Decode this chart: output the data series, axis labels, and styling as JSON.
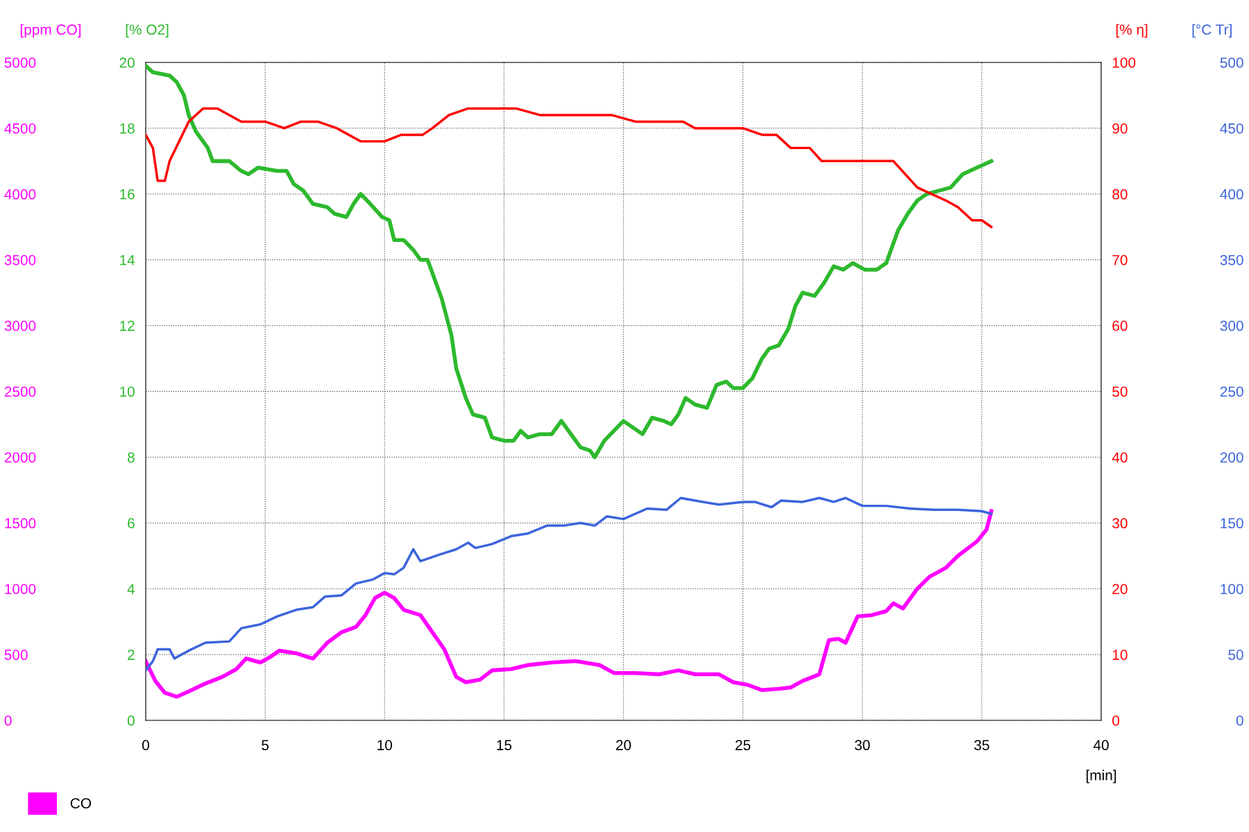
{
  "chart_data": [
    {
      "type": "line",
      "xlabel": "[min]",
      "ylabel": "[ppm CO]",
      "y2label": "[% O2]",
      "xlim": [
        0,
        40
      ],
      "xticks": [
        0,
        5,
        10,
        15,
        20,
        25,
        30,
        35,
        40
      ],
      "ylim": [
        0,
        5000
      ],
      "yticks": [
        0,
        500,
        1000,
        1500,
        2000,
        2500,
        3000,
        3500,
        4000,
        4500,
        5000
      ],
      "y2lim": [
        0,
        20
      ],
      "y2ticks": [
        0,
        2,
        4,
        6,
        8,
        10,
        12,
        14,
        16,
        18,
        20
      ],
      "grid": true,
      "legend": "bottom left",
      "series": [
        {
          "axis": "y2",
          "color": "#2db92d",
          "x": [
            0,
            0.3,
            1.0,
            1.3,
            1.6,
            1.8,
            2.1,
            2.6,
            2.8,
            3.5,
            4.0,
            4.3,
            4.7,
            5.5,
            5.9,
            6.2,
            6.6,
            7.0,
            7.6,
            7.9,
            8.4,
            8.7,
            9.0,
            9.4,
            9.9,
            10.2,
            10.4,
            10.8,
            11.2,
            11.5,
            11.8,
            12.1,
            12.4,
            12.8,
            13.0,
            13.4,
            13.7,
            14.2,
            14.5,
            15.0,
            15.4,
            15.7,
            16.0,
            16.5,
            17.0,
            17.4,
            17.8,
            18.2,
            18.6,
            18.8,
            19.2,
            19.6,
            20.0,
            20.4,
            20.8,
            21.2,
            21.7,
            22.0,
            22.3,
            22.6,
            23.0,
            23.5,
            23.9,
            24.3,
            24.6,
            25.0,
            25.4,
            25.8,
            26.1,
            26.5,
            26.9,
            27.2,
            27.5,
            28.0,
            28.4,
            28.8,
            29.2,
            29.6,
            30.1,
            30.6,
            31.0,
            31.5,
            31.9,
            32.3,
            32.7,
            33.2,
            33.7,
            34.2,
            34.8,
            35.4
          ],
          "values": [
            19.9,
            19.7,
            19.6,
            19.4,
            19.0,
            18.4,
            17.9,
            17.4,
            17.0,
            17.0,
            16.7,
            16.6,
            16.8,
            16.7,
            16.7,
            16.3,
            16.1,
            15.7,
            15.6,
            15.4,
            15.3,
            15.7,
            16.0,
            15.7,
            15.3,
            15.2,
            14.6,
            14.6,
            14.3,
            14.0,
            14.0,
            13.4,
            12.8,
            11.7,
            10.7,
            9.8,
            9.3,
            9.2,
            8.6,
            8.5,
            8.5,
            8.8,
            8.6,
            8.7,
            8.7,
            9.1,
            8.7,
            8.3,
            8.2,
            8.0,
            8.5,
            8.8,
            9.1,
            8.9,
            8.7,
            9.2,
            9.1,
            9.0,
            9.3,
            9.8,
            9.6,
            9.5,
            10.2,
            10.3,
            10.1,
            10.1,
            10.4,
            11.0,
            11.3,
            11.4,
            11.9,
            12.6,
            13.0,
            12.9,
            13.3,
            13.8,
            13.7,
            13.9,
            13.7,
            13.7,
            13.9,
            14.9,
            15.4,
            15.8,
            16.0,
            16.1,
            16.2,
            16.6,
            16.8,
            17.0
          ]
        },
        {
          "name": "CO",
          "color": "#ff00ff",
          "x": [
            0,
            0.4,
            0.8,
            1.3,
            1.8,
            2.5,
            3.2,
            3.8,
            4.2,
            4.8,
            5.2,
            5.6,
            6.3,
            6.8,
            7.0,
            7.6,
            8.2,
            8.8,
            9.2,
            9.6,
            10.0,
            10.4,
            10.8,
            11.5,
            12.0,
            12.5,
            13.0,
            13.4,
            14.0,
            14.5,
            15.3,
            16.0,
            17.0,
            18.0,
            19.0,
            19.6,
            20.5,
            21.5,
            22.3,
            23.0,
            24.0,
            24.6,
            25.2,
            25.8,
            26.5,
            27.0,
            27.5,
            28.2,
            28.6,
            29.0,
            29.3,
            29.8,
            30.4,
            31.0,
            31.3,
            31.7,
            32.3,
            32.8,
            33.5,
            34.0,
            34.8,
            35.2,
            35.4
          ],
          "values": [
            450,
            300,
            210,
            180,
            220,
            280,
            330,
            390,
            470,
            440,
            480,
            530,
            510,
            480,
            470,
            590,
            670,
            710,
            800,
            930,
            970,
            930,
            840,
            800,
            670,
            540,
            330,
            290,
            310,
            380,
            390,
            420,
            440,
            450,
            420,
            360,
            360,
            350,
            380,
            350,
            350,
            290,
            270,
            230,
            240,
            250,
            300,
            350,
            610,
            620,
            590,
            790,
            800,
            830,
            890,
            850,
            1000,
            1090,
            1160,
            1250,
            1360,
            1450,
            1590
          ]
        }
      ]
    },
    {
      "type": "line",
      "ylabel": "[% η]",
      "y2label": "[°C Tr]",
      "xlim": [
        0,
        40
      ],
      "tick_labels": "y",
      "ylim": [
        0,
        100
      ],
      "yticks": [
        0,
        10,
        20,
        30,
        40,
        50,
        60,
        70,
        80,
        90,
        100
      ],
      "y2lim": [
        0,
        500
      ],
      "y2ticks": [
        0,
        50,
        100,
        150,
        200,
        250,
        300,
        350,
        400,
        450,
        500
      ],
      "series": [
        {
          "color": "#ff0000",
          "x": [
            0,
            0.3,
            0.5,
            0.8,
            1.0,
            1.4,
            1.8,
            2.4,
            3.0,
            3.5,
            4.0,
            5.0,
            5.8,
            6.5,
            7.2,
            8.0,
            8.5,
            9.0,
            9.5,
            10.0,
            10.7,
            11.2,
            11.6,
            12.0,
            12.7,
            13.5,
            14.5,
            15.5,
            16.5,
            17.5,
            18.5,
            19.5,
            20.5,
            21.5,
            22.5,
            23.0,
            24.0,
            25.0,
            25.8,
            26.4,
            27.0,
            27.8,
            28.3,
            29.0,
            29.7,
            30.2,
            30.8,
            31.3,
            31.8,
            32.3,
            32.9,
            33.5,
            34.0,
            34.6,
            35.0,
            35.4
          ],
          "values": [
            89,
            87,
            82,
            82,
            85,
            88,
            91,
            93,
            93,
            92,
            91,
            91,
            90,
            91,
            91,
            90,
            89,
            88,
            88,
            88,
            89,
            89,
            89,
            90,
            92,
            93,
            93,
            93,
            92,
            92,
            92,
            92,
            91,
            91,
            91,
            90,
            90,
            90,
            89,
            89,
            87,
            87,
            85,
            85,
            85,
            85,
            85,
            85,
            83,
            81,
            80,
            79,
            78,
            76,
            76,
            75
          ]
        },
        {
          "axis": "y2",
          "color": "#3c64dc",
          "x": [
            0,
            0.3,
            0.5,
            1.0,
            1.2,
            1.8,
            2.5,
            3.5,
            4.0,
            4.8,
            5.5,
            6.3,
            7.0,
            7.5,
            8.2,
            8.8,
            9.5,
            10.0,
            10.4,
            10.8,
            11.2,
            11.5,
            12.3,
            13.0,
            13.5,
            13.8,
            14.5,
            15.3,
            16.0,
            16.8,
            17.5,
            18.2,
            18.8,
            19.3,
            20.0,
            20.5,
            21.0,
            21.8,
            22.4,
            23.0,
            24.0,
            25.0,
            25.5,
            26.2,
            26.6,
            27.5,
            28.2,
            28.8,
            29.3,
            30.0,
            31.0,
            32.0,
            33.0,
            34.0,
            35.0,
            35.4
          ],
          "values": [
            38,
            45,
            54,
            54,
            47,
            53,
            59,
            60,
            70,
            73,
            79,
            84,
            86,
            94,
            95,
            104,
            107,
            112,
            111,
            116,
            130,
            121,
            126,
            130,
            135,
            131,
            134,
            140,
            142,
            148,
            148,
            150,
            148,
            155,
            153,
            157,
            161,
            160,
            169,
            167,
            164,
            166,
            166,
            162,
            167,
            166,
            169,
            166,
            169,
            163,
            163,
            161,
            160,
            160,
            159,
            157
          ]
        }
      ]
    }
  ]
}
